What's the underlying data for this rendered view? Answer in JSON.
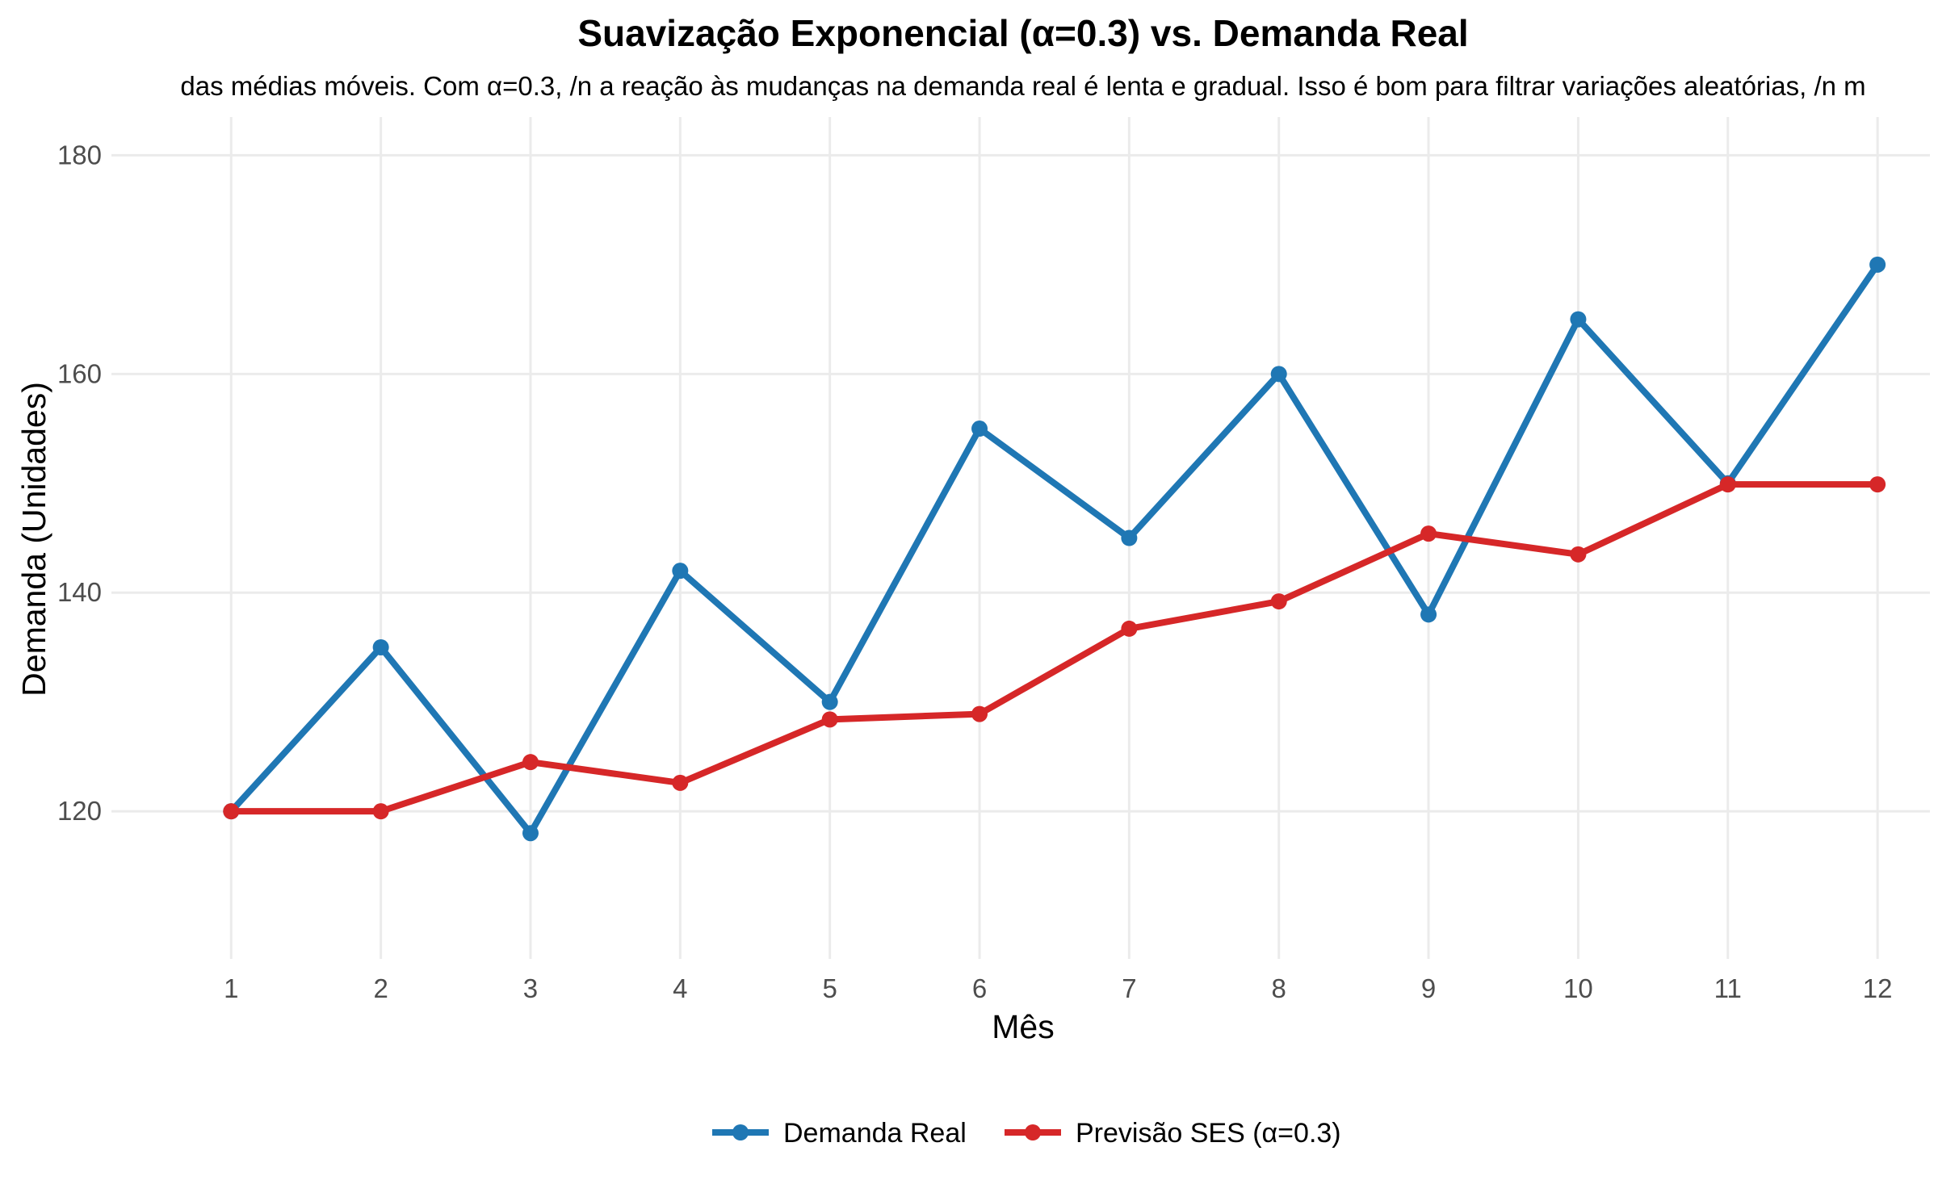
{
  "chart_data": {
    "type": "line",
    "title": "Suavização Exponencial (α=0.3) vs. Demanda Real",
    "subtitle": "das médias móveis. Com α=0.3, /n a reação às mudanças na demanda real é lenta e gradual. Isso é bom para filtrar variações aleatórias, /n m",
    "xlabel": "Mês",
    "ylabel": "Demanda (Unidades)",
    "x": [
      1,
      2,
      3,
      4,
      5,
      6,
      7,
      8,
      9,
      10,
      11,
      12
    ],
    "x_ticks": [
      "1",
      "2",
      "3",
      "4",
      "5",
      "6",
      "7",
      "8",
      "9",
      "10",
      "11",
      "12"
    ],
    "y_ticks": [
      "120",
      "140",
      "160",
      "180"
    ],
    "y_tick_values": [
      120,
      140,
      160,
      180
    ],
    "xlim": [
      0.2,
      12.35
    ],
    "ylim": [
      106.5,
      183.5
    ],
    "grid": true,
    "legend_position": "bottom",
    "series": [
      {
        "name": "Demanda Real",
        "color": "#1f77b4",
        "values": [
          120,
          135,
          118,
          142,
          130,
          155,
          145,
          160,
          138,
          165,
          150,
          170
        ]
      },
      {
        "name": "Previsão SES (α=0.3)",
        "color": "#d62728",
        "values": [
          120,
          120,
          124.5,
          122.6,
          128.4,
          128.9,
          136.7,
          139.2,
          145.4,
          143.5,
          149.9,
          149.9
        ]
      }
    ]
  }
}
